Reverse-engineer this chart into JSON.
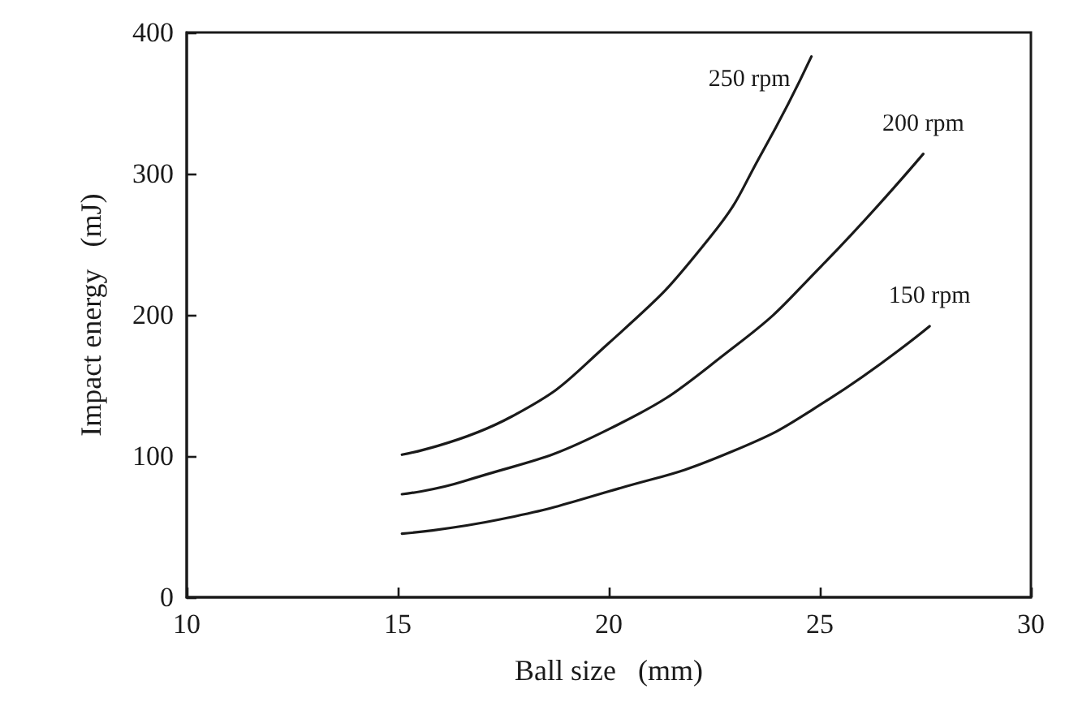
{
  "chart_data": {
    "type": "line",
    "xlabel": "Ball size   (mm)",
    "ylabel": "Impact energy   (mJ)",
    "xlim": [
      10,
      30
    ],
    "xticks": [
      10,
      15,
      20,
      25,
      30
    ],
    "ylim": [
      0,
      400
    ],
    "yticks": [
      0,
      100,
      200,
      300,
      400
    ],
    "grid": false,
    "legend": false,
    "marker": "none",
    "line_style": "solid",
    "series": [
      {
        "name": "250 rpm",
        "color": "#1a1a1a",
        "x": [
          15.1,
          17.7,
          20,
          22.4,
          23.65,
          24.8
        ],
        "values": [
          101,
          128,
          180,
          255,
          316,
          383
        ]
      },
      {
        "name": "200 rpm",
        "color": "#1a1a1a",
        "x": [
          15.1,
          16.55,
          20,
          23,
          25.05,
          27.45
        ],
        "values": [
          73,
          82,
          119,
          178,
          235,
          314
        ]
      },
      {
        "name": "150 rpm",
        "color": "#1a1a1a",
        "x": [
          15.1,
          17.4,
          20,
          22.9,
          25.2,
          27.6
        ],
        "values": [
          45,
          55,
          75,
          103,
          140,
          192
        ]
      }
    ]
  }
}
